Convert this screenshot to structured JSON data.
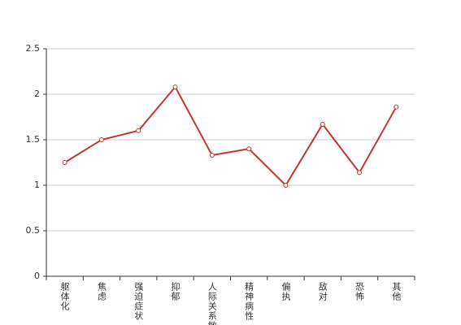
{
  "chart_data": {
    "type": "line",
    "categories": [
      "躯体化",
      "焦虑",
      "强迫症状",
      "抑郁",
      "人际关系敏感",
      "精神病性",
      "偏执",
      "敌对",
      "恐怖",
      "其他"
    ],
    "values": [
      1.25,
      1.5,
      1.6,
      2.08,
      1.33,
      1.4,
      1.0,
      1.67,
      1.14,
      1.86
    ],
    "color": "#c23531",
    "ylim": [
      0,
      2.5
    ],
    "yticks": [
      0,
      0.5,
      1,
      1.5,
      2,
      2.5
    ],
    "grid": true
  }
}
